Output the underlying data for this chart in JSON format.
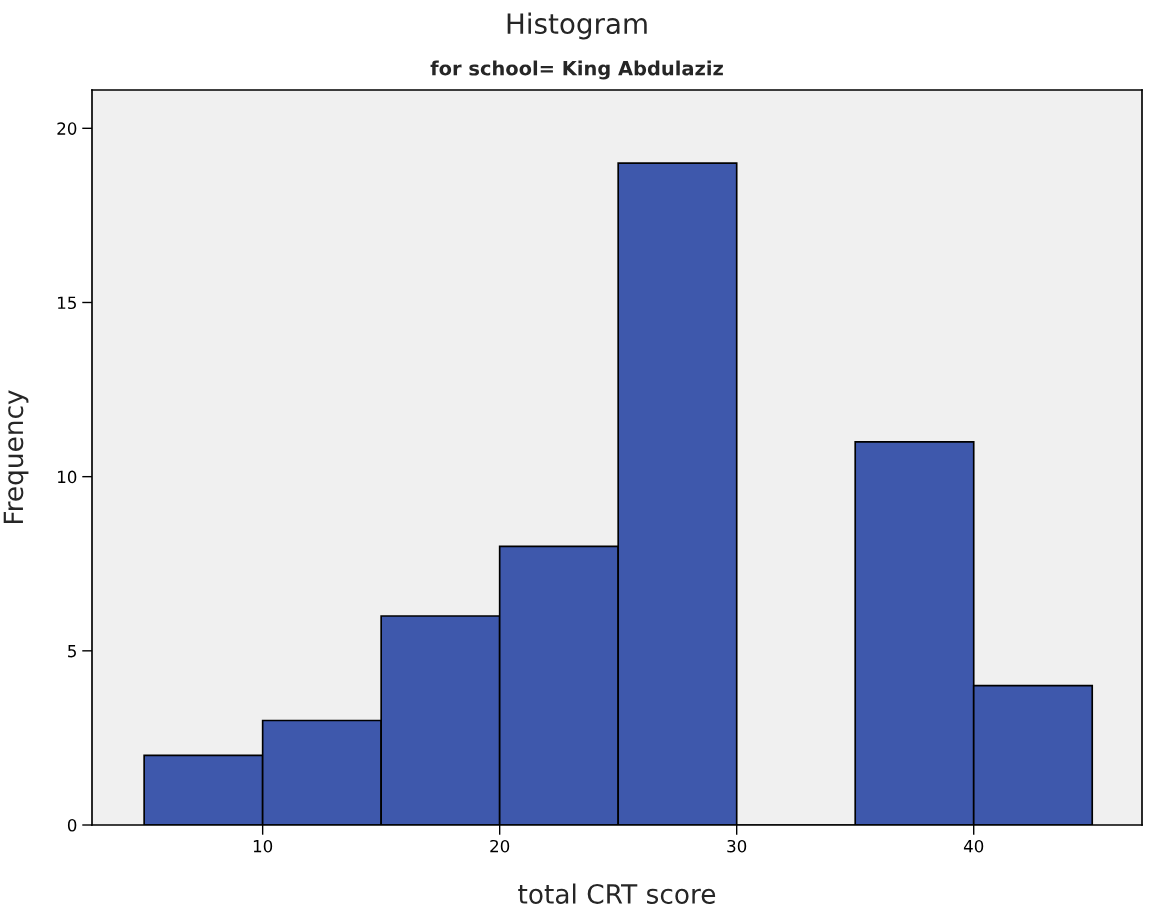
{
  "chart_data": {
    "type": "histogram",
    "title": "Histogram",
    "subtitle": "for school= King Abdulaziz",
    "xlabel": "total CRT score",
    "ylabel": "Frequency",
    "bins": [
      5,
      10,
      15,
      20,
      25,
      30,
      35,
      40,
      45
    ],
    "values": [
      2,
      3,
      6,
      8,
      19,
      0,
      11,
      4
    ],
    "color": "#3e58ac",
    "xlim": [
      2.8,
      47.1
    ],
    "xticks": [
      10,
      20,
      30,
      40
    ],
    "ylim": [
      0,
      21.1
    ],
    "yticks": [
      0,
      5,
      10,
      15,
      20
    ],
    "grid": false
  }
}
